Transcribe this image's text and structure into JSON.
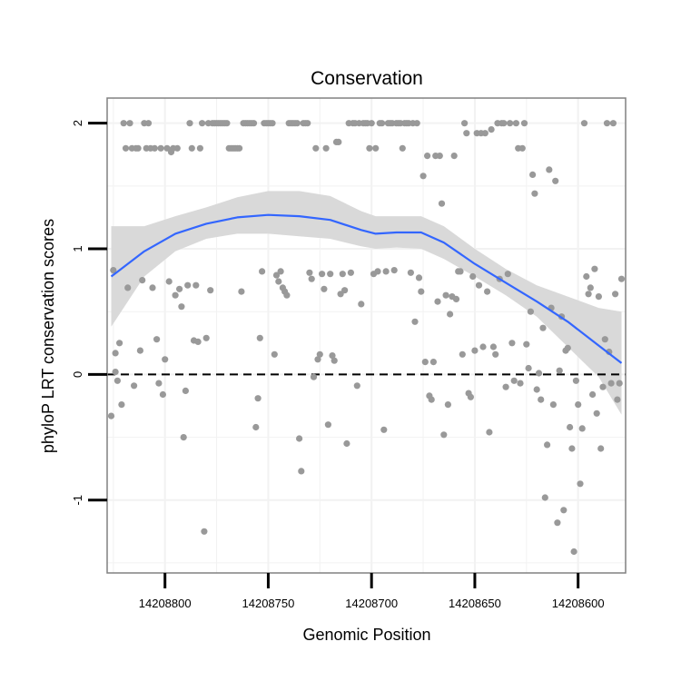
{
  "chart_data": {
    "type": "scatter",
    "title": "Conservation",
    "xlabel": "Genomic Position",
    "ylabel": "phyloP LRT conservation scores",
    "x_reversed": true,
    "xlim": [
      14208828,
      14208577
    ],
    "ylim": [
      -1.58,
      2.2
    ],
    "x_ticks": [
      14208800,
      14208750,
      14208700,
      14208650,
      14208600
    ],
    "x_tick_labels": [
      "14208800",
      "14208750",
      "14208700",
      "14208650",
      "14208600"
    ],
    "y_ticks": [
      -1,
      0,
      1,
      2
    ],
    "y_tick_labels": [
      "-1",
      "0",
      "1",
      "2"
    ],
    "reference_line": {
      "y": 0,
      "style": "dashed"
    },
    "grid": true,
    "point_color": "#999999",
    "smooth_color": "#3366ff",
    "band_color": "#d9d9d9",
    "smooth": {
      "x": [
        14208826,
        14208810,
        14208795,
        14208780,
        14208765,
        14208750,
        14208735,
        14208720,
        14208705,
        14208698,
        14208688,
        14208676,
        14208665,
        14208650,
        14208635,
        14208620,
        14208605,
        14208590,
        14208579
      ],
      "y": [
        0.78,
        0.98,
        1.12,
        1.2,
        1.25,
        1.27,
        1.26,
        1.23,
        1.15,
        1.12,
        1.13,
        1.13,
        1.05,
        0.88,
        0.73,
        0.58,
        0.42,
        0.23,
        0.09
      ],
      "lower": [
        0.38,
        0.78,
        0.98,
        1.08,
        1.12,
        1.12,
        1.1,
        1.08,
        1.02,
        1.0,
        1.01,
        1.0,
        0.92,
        0.78,
        0.63,
        0.46,
        0.22,
        -0.02,
        -0.32
      ],
      "upper": [
        1.18,
        1.18,
        1.26,
        1.33,
        1.41,
        1.46,
        1.46,
        1.42,
        1.3,
        1.26,
        1.26,
        1.26,
        1.18,
        1.0,
        0.84,
        0.71,
        0.62,
        0.53,
        0.5
      ]
    },
    "points": [
      [
        14208826,
        -0.33
      ],
      [
        14208825,
        0.83
      ],
      [
        14208824,
        0.02
      ],
      [
        14208824,
        0.17
      ],
      [
        14208823,
        -0.05
      ],
      [
        14208822,
        0.25
      ],
      [
        14208821,
        -0.24
      ],
      [
        14208820,
        2.0
      ],
      [
        14208819,
        1.8
      ],
      [
        14208818,
        0.69
      ],
      [
        14208817,
        2.0
      ],
      [
        14208816,
        1.8
      ],
      [
        14208815,
        -0.09
      ],
      [
        14208814,
        1.8
      ],
      [
        14208813,
        1.8
      ],
      [
        14208812,
        0.19
      ],
      [
        14208811,
        0.75
      ],
      [
        14208810,
        2.0
      ],
      [
        14208809,
        1.8
      ],
      [
        14208808,
        2.0
      ],
      [
        14208807,
        1.8
      ],
      [
        14208806,
        0.69
      ],
      [
        14208805,
        1.8
      ],
      [
        14208804,
        0.28
      ],
      [
        14208803,
        -0.07
      ],
      [
        14208802,
        1.8
      ],
      [
        14208801,
        -0.16
      ],
      [
        14208800,
        0.12
      ],
      [
        14208799,
        1.8
      ],
      [
        14208798,
        0.74
      ],
      [
        14208797,
        1.77
      ],
      [
        14208796,
        1.8
      ],
      [
        14208795,
        0.63
      ],
      [
        14208794,
        1.8
      ],
      [
        14208793,
        0.68
      ],
      [
        14208792,
        0.54
      ],
      [
        14208791,
        -0.5
      ],
      [
        14208790,
        -0.13
      ],
      [
        14208789,
        0.71
      ],
      [
        14208788,
        2.0
      ],
      [
        14208787,
        1.8
      ],
      [
        14208786,
        0.27
      ],
      [
        14208785,
        0.71
      ],
      [
        14208784,
        0.26
      ],
      [
        14208783,
        1.8
      ],
      [
        14208782,
        2.0
      ],
      [
        14208781,
        -1.25
      ],
      [
        14208780,
        0.29
      ],
      [
        14208779,
        2.0
      ],
      [
        14208778,
        0.67
      ],
      [
        14208777,
        2.0
      ],
      [
        14208776,
        2.0
      ],
      [
        14208775,
        2.0
      ],
      [
        14208774,
        2.0
      ],
      [
        14208773,
        2.0
      ],
      [
        14208772,
        2.0
      ],
      [
        14208771,
        2.0
      ],
      [
        14208770,
        2.0
      ],
      [
        14208769,
        1.8
      ],
      [
        14208768,
        1.8
      ],
      [
        14208767,
        1.8
      ],
      [
        14208766,
        1.8
      ],
      [
        14208765,
        1.8
      ],
      [
        14208764,
        1.8
      ],
      [
        14208763,
        0.66
      ],
      [
        14208762,
        2.0
      ],
      [
        14208761,
        2.0
      ],
      [
        14208760,
        2.0
      ],
      [
        14208759,
        2.0
      ],
      [
        14208758,
        2.0
      ],
      [
        14208757,
        2.0
      ],
      [
        14208756,
        -0.42
      ],
      [
        14208755,
        -0.19
      ],
      [
        14208754,
        0.29
      ],
      [
        14208753,
        0.82
      ],
      [
        14208752,
        2.0
      ],
      [
        14208751,
        2.0
      ],
      [
        14208750,
        2.0
      ],
      [
        14208749,
        2.0
      ],
      [
        14208748,
        2.0
      ],
      [
        14208747,
        0.16
      ],
      [
        14208746,
        0.79
      ],
      [
        14208745,
        0.74
      ],
      [
        14208744,
        0.82
      ],
      [
        14208743,
        0.69
      ],
      [
        14208742,
        0.66
      ],
      [
        14208741,
        0.63
      ],
      [
        14208740,
        2.0
      ],
      [
        14208739,
        2.0
      ],
      [
        14208738,
        2.0
      ],
      [
        14208737,
        2.0
      ],
      [
        14208736,
        2.0
      ],
      [
        14208735,
        -0.51
      ],
      [
        14208734,
        -0.77
      ],
      [
        14208733,
        2.0
      ],
      [
        14208732,
        2.0
      ],
      [
        14208731,
        2.0
      ],
      [
        14208730,
        0.81
      ],
      [
        14208729,
        0.76
      ],
      [
        14208728,
        -0.02
      ],
      [
        14208727,
        1.8
      ],
      [
        14208726,
        0.12
      ],
      [
        14208725,
        0.16
      ],
      [
        14208724,
        0.8
      ],
      [
        14208723,
        0.68
      ],
      [
        14208722,
        1.8
      ],
      [
        14208721,
        -0.4
      ],
      [
        14208720,
        0.8
      ],
      [
        14208719,
        0.15
      ],
      [
        14208718,
        0.11
      ],
      [
        14208717,
        1.85
      ],
      [
        14208716,
        1.85
      ],
      [
        14208715,
        0.64
      ],
      [
        14208714,
        0.8
      ],
      [
        14208713,
        0.67
      ],
      [
        14208712,
        -0.55
      ],
      [
        14208711,
        2.0
      ],
      [
        14208710,
        0.81
      ],
      [
        14208709,
        2.0
      ],
      [
        14208708,
        2.0
      ],
      [
        14208707,
        -0.09
      ],
      [
        14208706,
        2.0
      ],
      [
        14208705,
        0.56
      ],
      [
        14208704,
        2.0
      ],
      [
        14208703,
        2.0
      ],
      [
        14208702,
        2.0
      ],
      [
        14208701,
        1.8
      ],
      [
        14208700,
        2.0
      ],
      [
        14208699,
        0.8
      ],
      [
        14208698,
        1.8
      ],
      [
        14208697,
        0.82
      ],
      [
        14208696,
        2.0
      ],
      [
        14208695,
        2.0
      ],
      [
        14208694,
        -0.44
      ],
      [
        14208693,
        0.82
      ],
      [
        14208692,
        2.0
      ],
      [
        14208691,
        2.0
      ],
      [
        14208690,
        2.0
      ],
      [
        14208689,
        0.83
      ],
      [
        14208688,
        2.0
      ],
      [
        14208687,
        2.0
      ],
      [
        14208686,
        2.0
      ],
      [
        14208685,
        1.8
      ],
      [
        14208684,
        2.0
      ],
      [
        14208683,
        2.0
      ],
      [
        14208682,
        2.0
      ],
      [
        14208681,
        0.81
      ],
      [
        14208680,
        2.0
      ],
      [
        14208679,
        0.42
      ],
      [
        14208678,
        2.0
      ],
      [
        14208677,
        0.77
      ],
      [
        14208676,
        0.66
      ],
      [
        14208675,
        1.58
      ],
      [
        14208674,
        0.1
      ],
      [
        14208673,
        1.74
      ],
      [
        14208672,
        -0.17
      ],
      [
        14208671,
        -0.2
      ],
      [
        14208670,
        0.1
      ],
      [
        14208669,
        1.74
      ],
      [
        14208668,
        0.58
      ],
      [
        14208667,
        1.74
      ],
      [
        14208666,
        1.36
      ],
      [
        14208665,
        -0.48
      ],
      [
        14208664,
        0.63
      ],
      [
        14208663,
        -0.24
      ],
      [
        14208662,
        0.48
      ],
      [
        14208661,
        0.62
      ],
      [
        14208660,
        1.74
      ],
      [
        14208659,
        0.6
      ],
      [
        14208658,
        0.82
      ],
      [
        14208657,
        0.82
      ],
      [
        14208656,
        0.16
      ],
      [
        14208655,
        2.0
      ],
      [
        14208654,
        1.92
      ],
      [
        14208653,
        -0.15
      ],
      [
        14208652,
        -0.18
      ],
      [
        14208651,
        0.78
      ],
      [
        14208650,
        0.19
      ],
      [
        14208649,
        1.92
      ],
      [
        14208648,
        0.71
      ],
      [
        14208647,
        1.92
      ],
      [
        14208646,
        0.22
      ],
      [
        14208645,
        1.92
      ],
      [
        14208644,
        0.66
      ],
      [
        14208643,
        -0.46
      ],
      [
        14208642,
        1.95
      ],
      [
        14208641,
        0.22
      ],
      [
        14208640,
        0.16
      ],
      [
        14208639,
        2.0
      ],
      [
        14208638,
        0.76
      ],
      [
        14208637,
        2.0
      ],
      [
        14208636,
        2.0
      ],
      [
        14208635,
        -0.1
      ],
      [
        14208634,
        0.8
      ],
      [
        14208633,
        2.0
      ],
      [
        14208632,
        0.25
      ],
      [
        14208631,
        -0.05
      ],
      [
        14208630,
        2.0
      ],
      [
        14208629,
        1.8
      ],
      [
        14208628,
        -0.07
      ],
      [
        14208627,
        1.8
      ],
      [
        14208626,
        2.0
      ],
      [
        14208625,
        0.24
      ],
      [
        14208624,
        0.05
      ],
      [
        14208623,
        0.5
      ],
      [
        14208622,
        1.59
      ],
      [
        14208621,
        1.44
      ],
      [
        14208620,
        -0.12
      ],
      [
        14208619,
        0.01
      ],
      [
        14208618,
        -0.2
      ],
      [
        14208617,
        0.37
      ],
      [
        14208616,
        -0.98
      ],
      [
        14208615,
        -0.56
      ],
      [
        14208614,
        1.63
      ],
      [
        14208613,
        0.53
      ],
      [
        14208612,
        -0.24
      ],
      [
        14208611,
        1.54
      ],
      [
        14208610,
        -1.18
      ],
      [
        14208609,
        0.03
      ],
      [
        14208608,
        0.46
      ],
      [
        14208607,
        -1.08
      ],
      [
        14208606,
        0.19
      ],
      [
        14208605,
        0.21
      ],
      [
        14208604,
        -0.42
      ],
      [
        14208603,
        -0.59
      ],
      [
        14208602,
        -1.41
      ],
      [
        14208601,
        -0.05
      ],
      [
        14208600,
        -0.24
      ],
      [
        14208599,
        -0.87
      ],
      [
        14208598,
        -0.43
      ],
      [
        14208597,
        2.0
      ],
      [
        14208596,
        0.78
      ],
      [
        14208595,
        0.64
      ],
      [
        14208594,
        0.69
      ],
      [
        14208593,
        -0.16
      ],
      [
        14208592,
        0.84
      ],
      [
        14208591,
        -0.31
      ],
      [
        14208590,
        0.62
      ],
      [
        14208589,
        -0.59
      ],
      [
        14208588,
        -0.1
      ],
      [
        14208587,
        0.28
      ],
      [
        14208586,
        2.0
      ],
      [
        14208585,
        0.18
      ],
      [
        14208584,
        -0.07
      ],
      [
        14208583,
        2.0
      ],
      [
        14208582,
        0.64
      ],
      [
        14208581,
        -0.2
      ],
      [
        14208580,
        -0.07
      ],
      [
        14208579,
        0.76
      ]
    ]
  }
}
